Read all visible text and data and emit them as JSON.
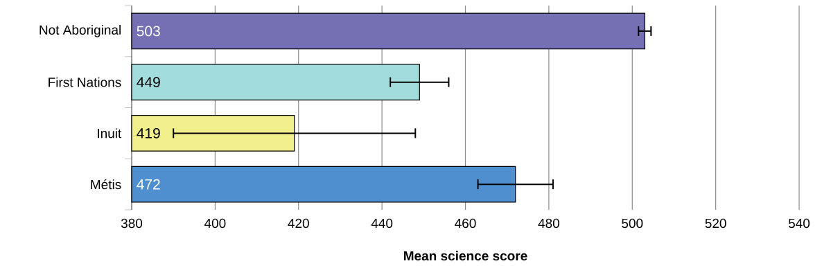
{
  "chart_data": {
    "type": "bar",
    "orientation": "horizontal",
    "xlabel": "Mean science score",
    "categories": [
      "Not Aboriginal",
      "First Nations",
      "Inuit",
      "Métis"
    ],
    "values": [
      503,
      449,
      419,
      472
    ],
    "colors": [
      "#7470b3",
      "#a2dcdc",
      "#f2f08c",
      "#4f8fcf"
    ],
    "errors": [
      [
        501.5,
        504.5
      ],
      [
        442,
        456
      ],
      [
        390,
        448
      ],
      [
        463,
        481
      ]
    ],
    "xlim": [
      380,
      540
    ],
    "xticks": [
      380,
      400,
      420,
      440,
      460,
      480,
      500,
      520,
      540
    ],
    "grid": "x",
    "data_labels": true
  }
}
